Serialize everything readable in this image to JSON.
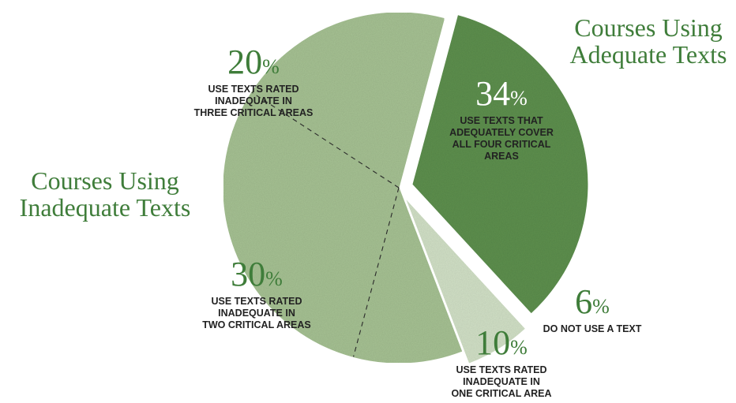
{
  "colors": {
    "adequate": "#5e9150",
    "inadequate": "#a7c394",
    "no_text": "#d3e2c8",
    "heading": "#3f7d3a"
  },
  "group_labels": {
    "adequate": "Courses Using\nAdequate Texts",
    "inadequate": "Courses Using\nInadequate Texts"
  },
  "chart_data": {
    "type": "pie",
    "title": "",
    "slices": [
      {
        "group": "adequate",
        "value": 34,
        "pct_number": "34",
        "pct_sign": "%",
        "label": "USE TEXTS THAT\nADEQUATELY COVER\nALL FOUR CRITICAL\nAREAS",
        "exploded": true
      },
      {
        "group": "no_text",
        "value": 6,
        "pct_number": "6",
        "pct_sign": "%",
        "label": "DO NOT USE A TEXT",
        "exploded": true
      },
      {
        "group": "inadequate",
        "value": 10,
        "pct_number": "10",
        "pct_sign": "%",
        "label": "USE TEXTS RATED\nINADEQUATE IN\nONE CRITICAL AREA",
        "exploded": false
      },
      {
        "group": "inadequate",
        "value": 30,
        "pct_number": "30",
        "pct_sign": "%",
        "label": "USE TEXTS RATED\nINADEQUATE IN\nTWO CRITICAL AREAS",
        "exploded": false
      },
      {
        "group": "inadequate",
        "value": 20,
        "pct_number": "20",
        "pct_sign": "%",
        "label": "USE TEXTS RATED\nINADEQUATE IN\nTHREE CRITICAL AREAS",
        "exploded": false
      }
    ]
  }
}
